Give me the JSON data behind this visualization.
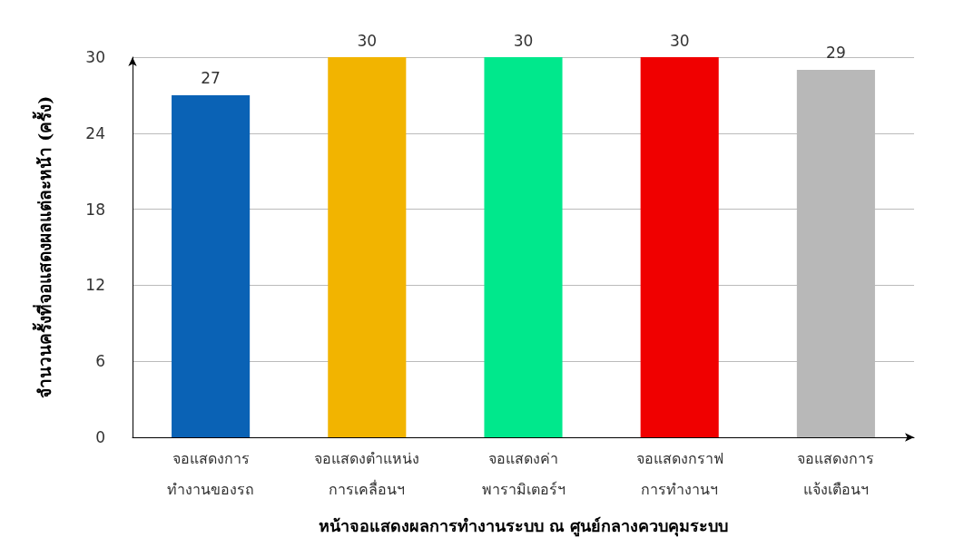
{
  "chart_data": {
    "type": "bar",
    "xlabel": "หน้าจอแสดงผลการทำงานระบบ ณ ศูนย์กลางควบคุมระบบ",
    "ylabel": "จำนวนครั้งที่จอแสดงผลแต่ละหน้า (ครั้ง)",
    "categories": [
      "จอแสดงการ\nทำงานของรถ",
      "จอแสดงตำแหน่ง\nการเคลื่อนฯ",
      "จอแสดงค่า\nพารามิเตอร์ฯ",
      "จอแสดงกราฟ\nการทำงานฯ",
      "จอแสดงการ\nแจ้งเตือนฯ"
    ],
    "values": [
      27,
      30,
      30,
      30,
      29
    ],
    "colors": [
      "#0a62b5",
      "#f2b400",
      "#00e88c",
      "#f00000",
      "#b8b8b8"
    ],
    "ylim": [
      0,
      30
    ],
    "yticks": [
      0,
      6,
      12,
      18,
      24,
      30
    ],
    "grid": "y",
    "data_labels": true
  }
}
